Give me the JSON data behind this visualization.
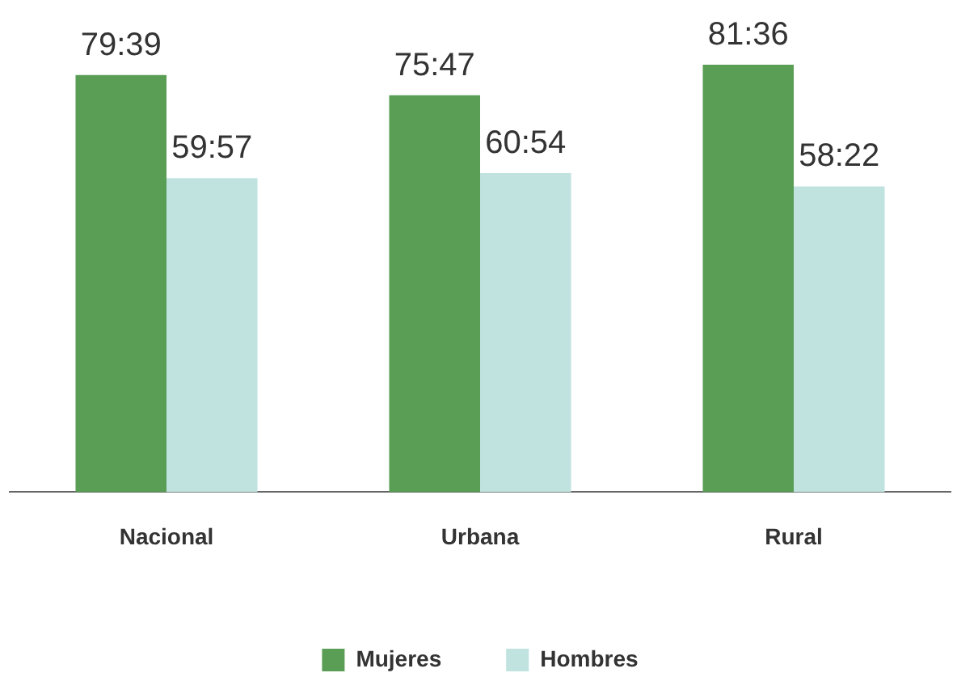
{
  "chart_data": {
    "type": "bar",
    "categories": [
      "Nacional",
      "Urbana",
      "Rural"
    ],
    "series": [
      {
        "name": "Mujeres",
        "color": "#5a9e55",
        "values": [
          79.65,
          75.78,
          81.6
        ],
        "value_labels": [
          "79:39",
          "75:47",
          "81:36"
        ]
      },
      {
        "name": "Hombres",
        "color": "#c0e3e0",
        "values": [
          59.95,
          60.9,
          58.37
        ],
        "value_labels": [
          "59:57",
          "60:54",
          "58:22"
        ]
      }
    ],
    "legend": "bottom"
  }
}
